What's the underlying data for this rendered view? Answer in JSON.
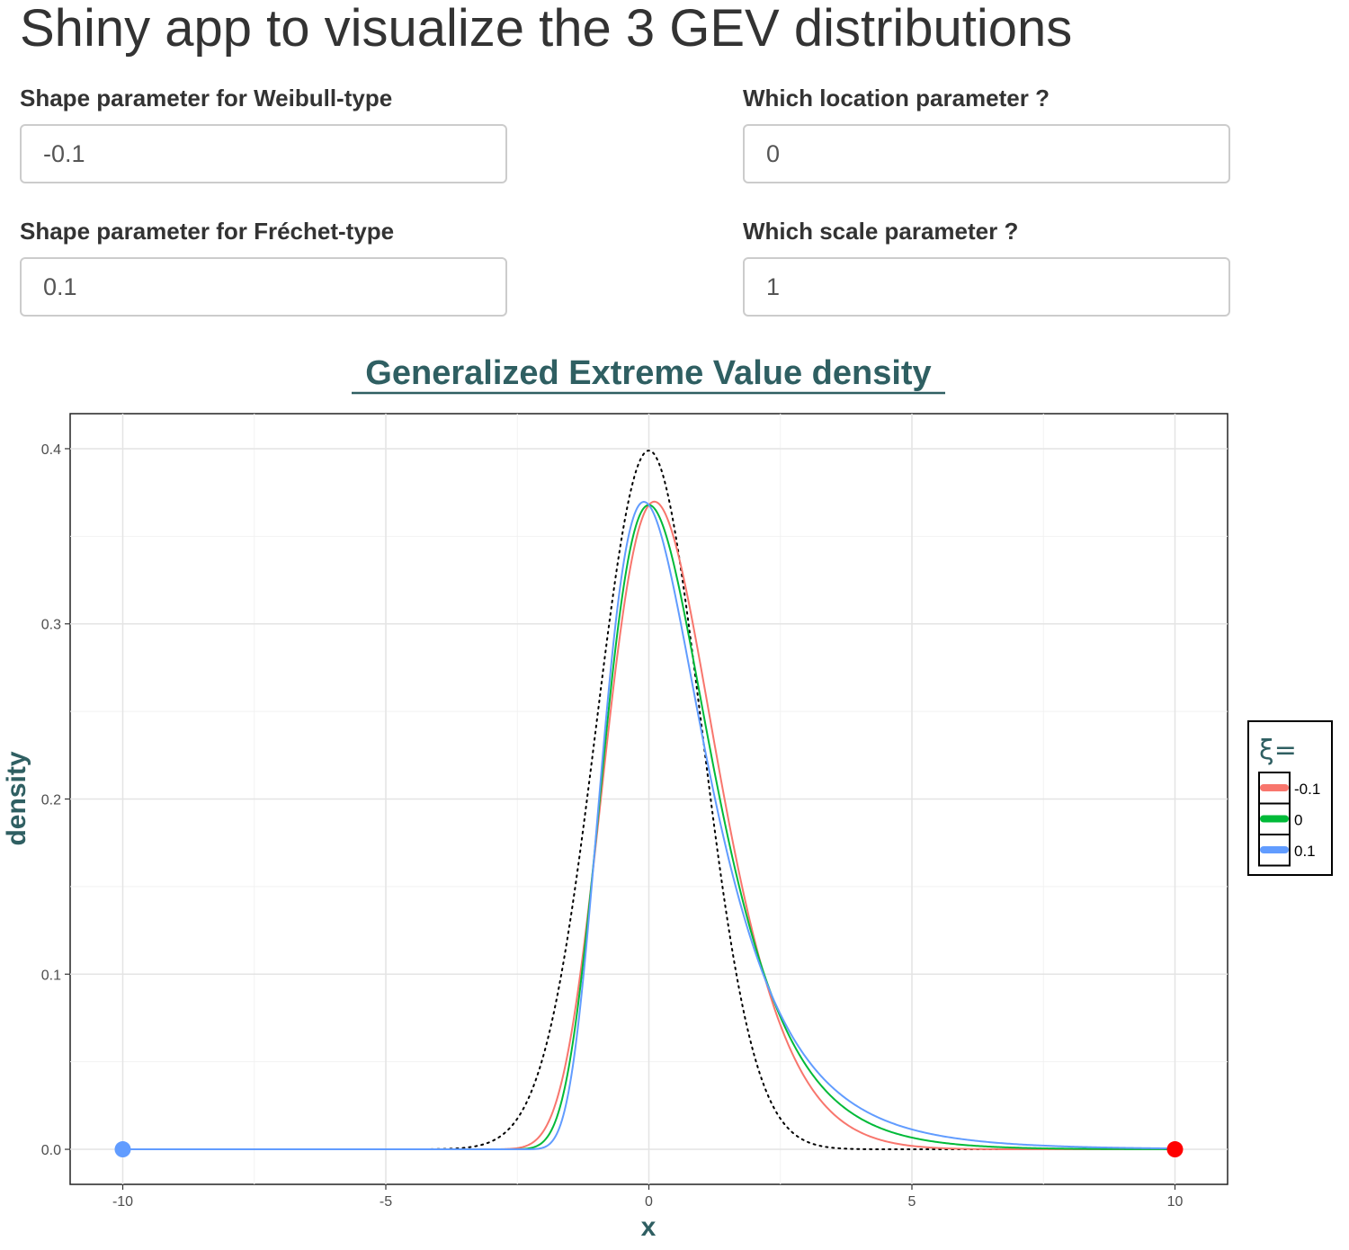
{
  "app": {
    "title": "Shiny app to visualize the 3 GEV distributions"
  },
  "inputs": {
    "weibull_shape": {
      "label": "Shape parameter for Weibull-type",
      "value": "-0.1"
    },
    "location": {
      "label": "Which location parameter ?",
      "value": "0"
    },
    "frechet_shape": {
      "label": "Shape parameter for Fréchet-type",
      "value": "0.1"
    },
    "scale": {
      "label": "Which scale parameter ?",
      "value": "1"
    }
  },
  "chart_data": {
    "type": "line",
    "title": "Generalized Extreme Value density",
    "xlabel": "x",
    "ylabel": "density",
    "xlim": [
      -11,
      11
    ],
    "ylim": [
      -0.02,
      0.42
    ],
    "x_ticks": [
      "-10",
      "-5",
      "0",
      "5",
      "10"
    ],
    "y_ticks": [
      "0.0",
      "0.1",
      "0.2",
      "0.3",
      "0.4"
    ],
    "grid": true,
    "legend": {
      "title": "ξ=",
      "position": "right"
    },
    "distribution_params": {
      "location": 0,
      "scale": 1
    },
    "series": [
      {
        "name": "-0.1",
        "color": "#F8766D",
        "shape": -0.1
      },
      {
        "name": "0",
        "color": "#00BA38",
        "shape": 0
      },
      {
        "name": "0.1",
        "color": "#619CFF",
        "shape": 0.1
      }
    ],
    "reference_curve": {
      "style": "dotted",
      "color": "#000000",
      "description_hidden": true
    },
    "endpoints": [
      {
        "x": -10,
        "y": 0,
        "color": "#619CFF"
      },
      {
        "x": 10,
        "y": 0,
        "color": "#FF0000"
      }
    ]
  }
}
